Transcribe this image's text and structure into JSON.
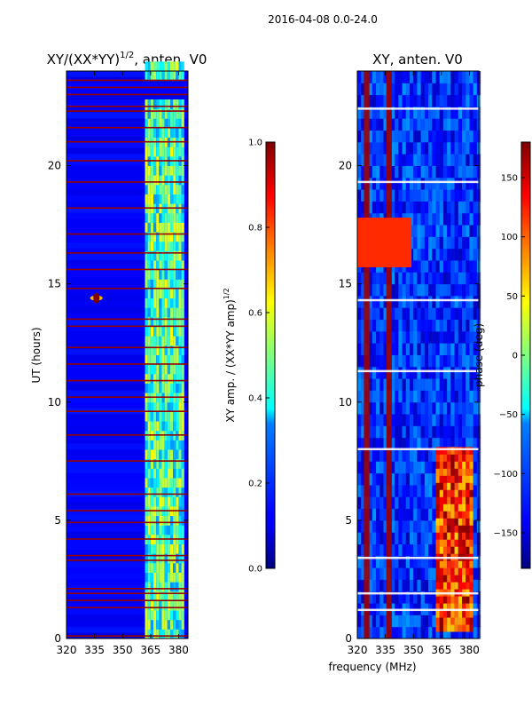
{
  "suptitle": "2016-04-08 0.0-24.0",
  "chart_data": [
    {
      "type": "heatmap",
      "title": "XY/(XX*YY)",
      "title_superscript": "1/2",
      "title_suffix": ", anten. V0",
      "xlabel": "",
      "ylabel": "UT (hours)",
      "xlim": [
        320,
        385
      ],
      "ylim": [
        0,
        24
      ],
      "x_ticks": [
        320,
        335,
        350,
        365,
        380
      ],
      "y_ticks": [
        0,
        5,
        10,
        15,
        20
      ],
      "colormap": "jet",
      "colorbar": {
        "label": "XY amp. / (XX*YY amp)",
        "label_superscript": "1/2",
        "range": [
          0.0,
          1.0
        ],
        "ticks": [
          "0.0",
          "0.2",
          "0.4",
          "0.6",
          "0.8",
          "1.0"
        ],
        "tick_values": [
          0.0,
          0.2,
          0.4,
          0.6,
          0.8,
          1.0
        ]
      },
      "typical_value": 0.12,
      "bright_band_mhz": [
        362,
        382
      ],
      "bright_band_value": 0.45,
      "flagged_hours": [
        0.1,
        1.3,
        1.6,
        1.9,
        2.1,
        3.3,
        3.5,
        4.2,
        4.9,
        5.4,
        6.1,
        7.5,
        8.6,
        9.6,
        10.2,
        10.9,
        11.6,
        12.3,
        13.2,
        13.5,
        14.8,
        15.6,
        16.3,
        17.1,
        18.2,
        19.3,
        20.2,
        21.0,
        21.6,
        22.3,
        22.5,
        23.0,
        23.3,
        23.6
      ],
      "feature": {
        "x_mhz": 336,
        "ut_hours": 14.4,
        "value": 1.0
      }
    },
    {
      "type": "heatmap",
      "title": "XY, anten. V0",
      "xlabel": "frequency (MHz)",
      "ylabel": "",
      "xlim": [
        320,
        385
      ],
      "ylim": [
        0,
        24
      ],
      "x_ticks": [
        320,
        335,
        350,
        365,
        380
      ],
      "y_ticks": [
        0,
        5,
        10,
        15,
        20
      ],
      "colormap": "jet",
      "colorbar": {
        "label": "phase (deg)",
        "range": [
          -180,
          180
        ],
        "ticks": [
          "−150",
          "−100",
          "−50",
          "0",
          "50",
          "100",
          "150"
        ],
        "tick_values": [
          -150,
          -100,
          -50,
          0,
          50,
          100,
          150
        ]
      },
      "typical_value": -120,
      "red_columns_mhz": [
        325,
        337
      ],
      "red_block_hours": [
        15.7,
        17.8
      ],
      "red_block_mhz": [
        320,
        349
      ],
      "red_lower_mhz": [
        362,
        382
      ],
      "red_lower_hours": [
        0.3,
        8.0
      ]
    }
  ]
}
